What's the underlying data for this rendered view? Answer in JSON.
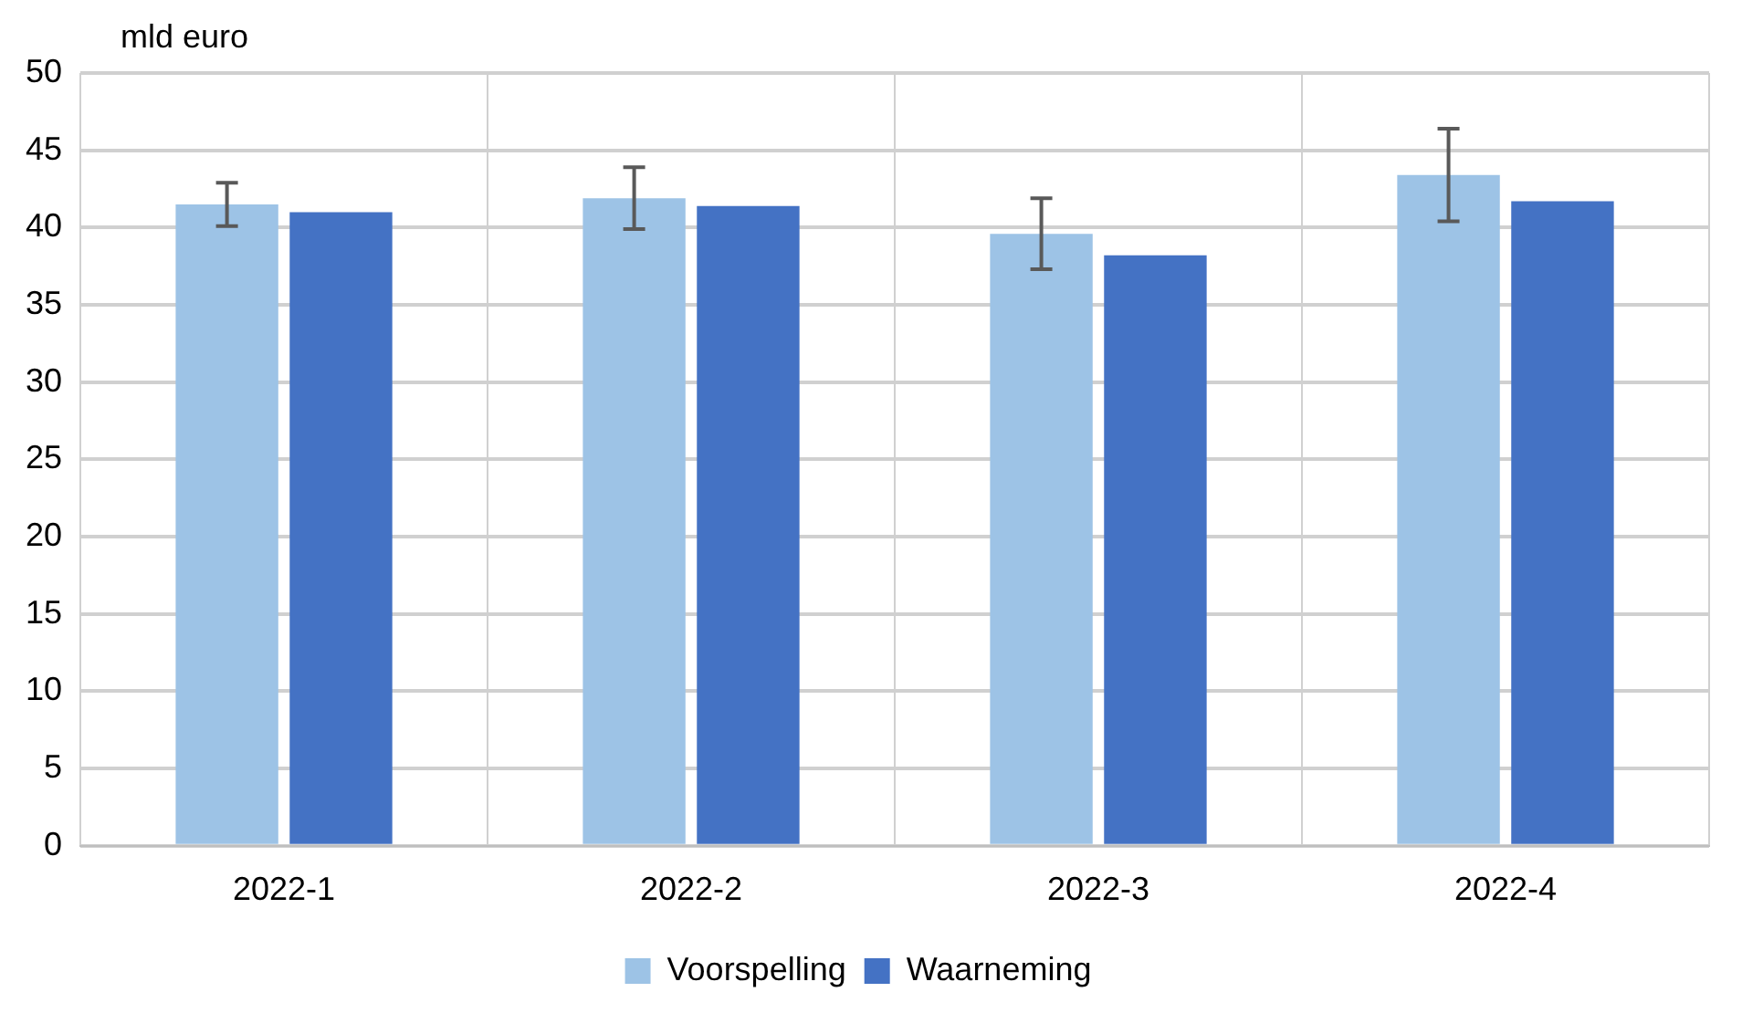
{
  "chart_data": {
    "type": "bar",
    "ylabel": "mld euro",
    "categories": [
      "2022-1",
      "2022-2",
      "2022-3",
      "2022-4"
    ],
    "series": [
      {
        "name": "Voorspelling",
        "color": "#9dc3e6",
        "values": [
          41.5,
          41.9,
          39.6,
          43.4
        ],
        "errors": [
          1.4,
          2.0,
          2.3,
          3.0
        ]
      },
      {
        "name": "Waarneming",
        "color": "#4472c4",
        "values": [
          41.0,
          41.4,
          38.2,
          41.7
        ]
      }
    ],
    "ylim": [
      0,
      50
    ],
    "yticks": [
      0,
      5,
      10,
      15,
      20,
      25,
      30,
      35,
      40,
      45,
      50
    ],
    "grid": true,
    "legend": "bottom"
  }
}
